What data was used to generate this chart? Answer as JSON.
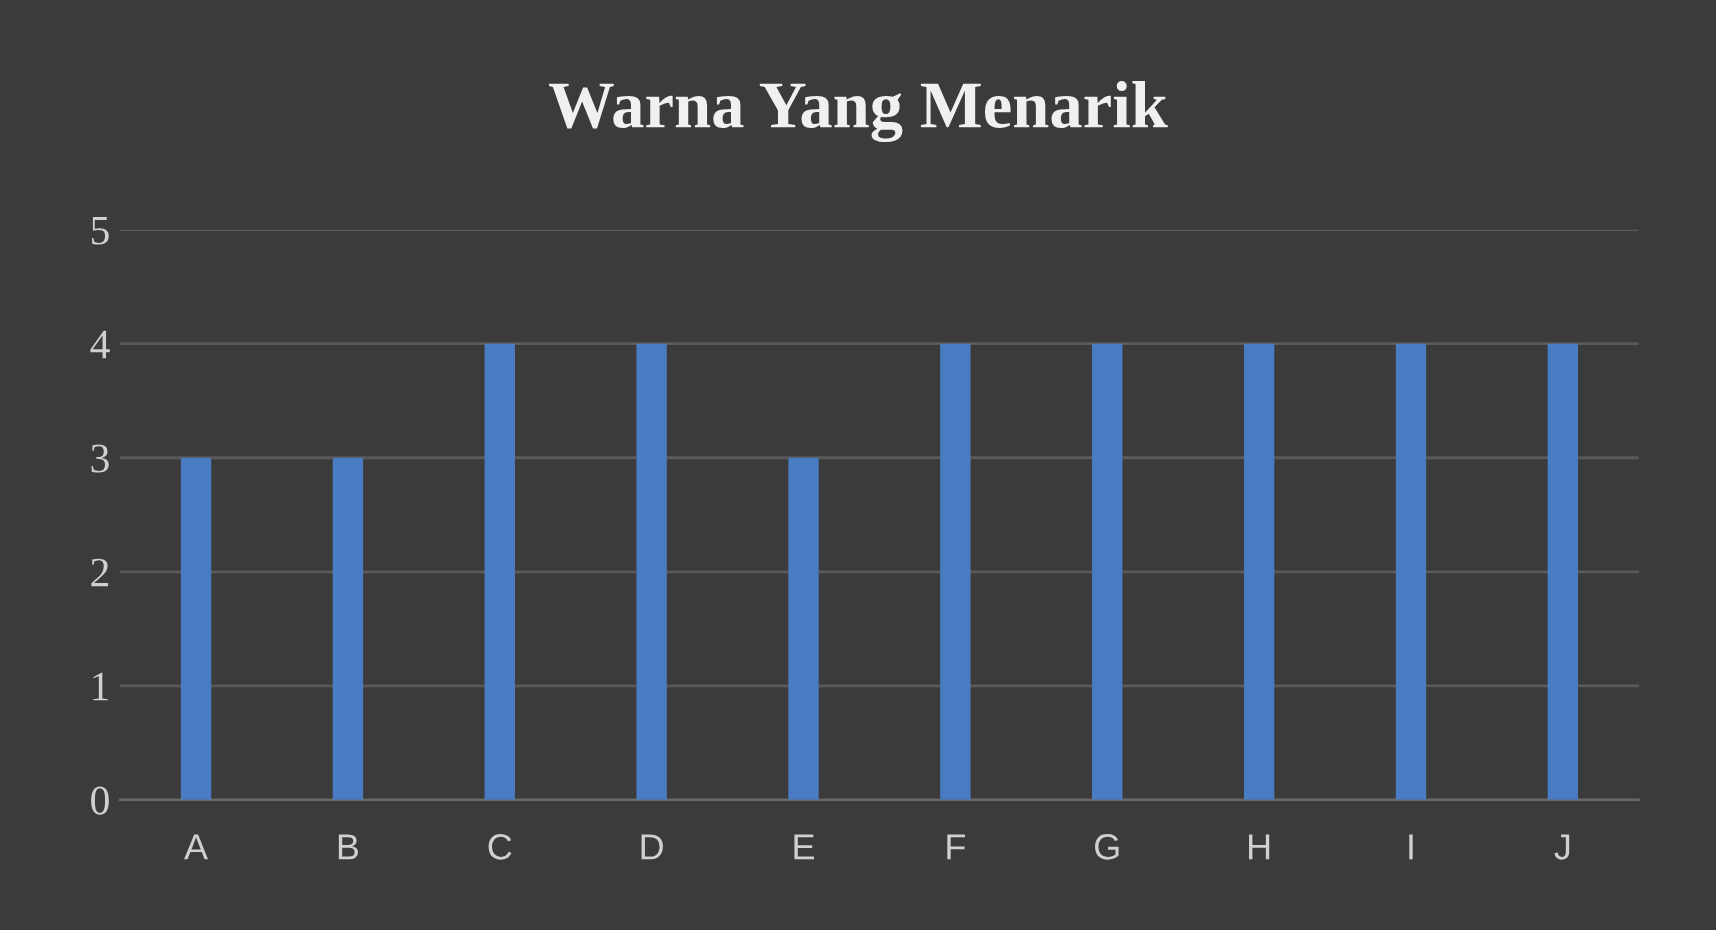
{
  "chart_data": {
    "type": "bar",
    "title": "Warna Yang Menarik",
    "categories": [
      "A",
      "B",
      "C",
      "D",
      "E",
      "F",
      "G",
      "H",
      "I",
      "J"
    ],
    "values": [
      3,
      3,
      4,
      4,
      3,
      4,
      4,
      4,
      4,
      4
    ],
    "color": "#4a7cc4",
    "ylim": [
      0,
      5
    ],
    "yticks": [
      0,
      1,
      2,
      3,
      4,
      5
    ],
    "grid": "y"
  }
}
